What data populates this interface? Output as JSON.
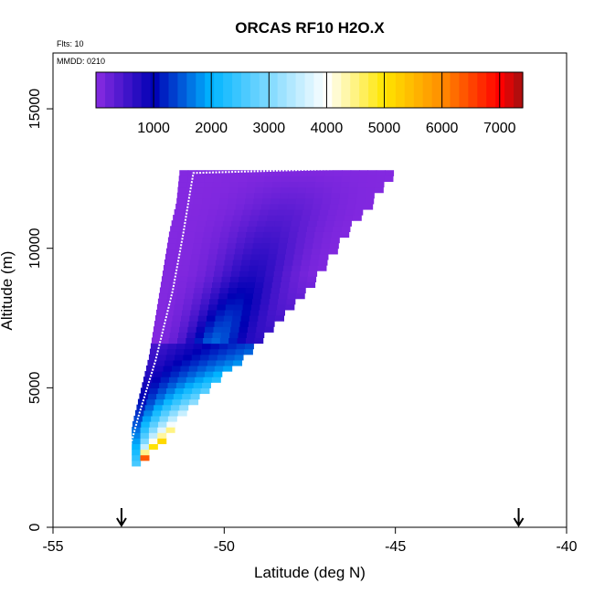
{
  "chart_data": {
    "type": "heatmap",
    "title": "ORCAS RF10 H2O.X",
    "xlabel": "Latitude (deg N)",
    "ylabel": "Altitude (m)",
    "xlim": [
      -55,
      -40
    ],
    "ylim": [
      0,
      17000
    ],
    "x_ticks": [
      -55,
      -50,
      -45,
      -40
    ],
    "x_tick_labels": [
      "-55",
      "-50",
      "-45",
      "-40"
    ],
    "y_ticks": [
      0,
      5000,
      10000,
      15000
    ],
    "y_tick_labels": [
      "0",
      "5000",
      "10000",
      "15000"
    ],
    "annotations": {
      "flights": "Flts: 10",
      "date": "MMDD: 0210"
    },
    "colorbar": {
      "range": [
        0,
        7400
      ],
      "ticks": [
        1000,
        2000,
        3000,
        4000,
        5000,
        6000,
        7000
      ],
      "tick_labels": [
        "1000",
        "2000",
        "3000",
        "4000",
        "5000",
        "6000",
        "7000"
      ],
      "colors": [
        "#8a2be2",
        "#0000b4",
        "#00b4ff",
        "#ffffff",
        "#ffe600",
        "#ff8c00",
        "#ff0000",
        "#a01010"
      ]
    },
    "grid": false,
    "markers": {
      "type": "arrow-down",
      "latitudes": [
        -53.0,
        -41.4
      ]
    },
    "wedge": {
      "description_values": "H2O.X mixing ratio field binned by latitude and altitude",
      "bin_lat": 0.25,
      "bin_alt": 200,
      "left_edge": [
        [
          2200,
          -52.7
        ],
        [
          3500,
          -52.7
        ],
        [
          4000,
          -52.6
        ],
        [
          5000,
          -52.4
        ],
        [
          6000,
          -52.2
        ],
        [
          7500,
          -52.0
        ],
        [
          9000,
          -51.8
        ],
        [
          10500,
          -51.6
        ],
        [
          11500,
          -51.4
        ],
        [
          12700,
          -51.3
        ]
      ],
      "right_edge": [
        [
          2200,
          -52.6
        ],
        [
          3000,
          -51.9
        ],
        [
          4000,
          -51.3
        ],
        [
          5000,
          -50.5
        ],
        [
          6000,
          -49.5
        ],
        [
          7500,
          -48.4
        ],
        [
          9000,
          -47.3
        ],
        [
          10500,
          -46.5
        ],
        [
          11500,
          -45.8
        ],
        [
          12600,
          -45.2
        ],
        [
          13000,
          -45.0
        ]
      ],
      "bottom_alt": 2200,
      "top_alt": 12800,
      "core_minimum": 800,
      "upper_background": 50,
      "surface_max": 7300
    },
    "profile_line": {
      "color": "#ffffff",
      "style": "dotted",
      "points": [
        [
          -52.9,
          2200
        ],
        [
          -52.5,
          4000
        ],
        [
          -52.0,
          6000
        ],
        [
          -51.5,
          8500
        ],
        [
          -51.2,
          10500
        ],
        [
          -51.0,
          12000
        ],
        [
          -50.9,
          12700
        ],
        [
          -45.0,
          12900
        ]
      ]
    }
  }
}
